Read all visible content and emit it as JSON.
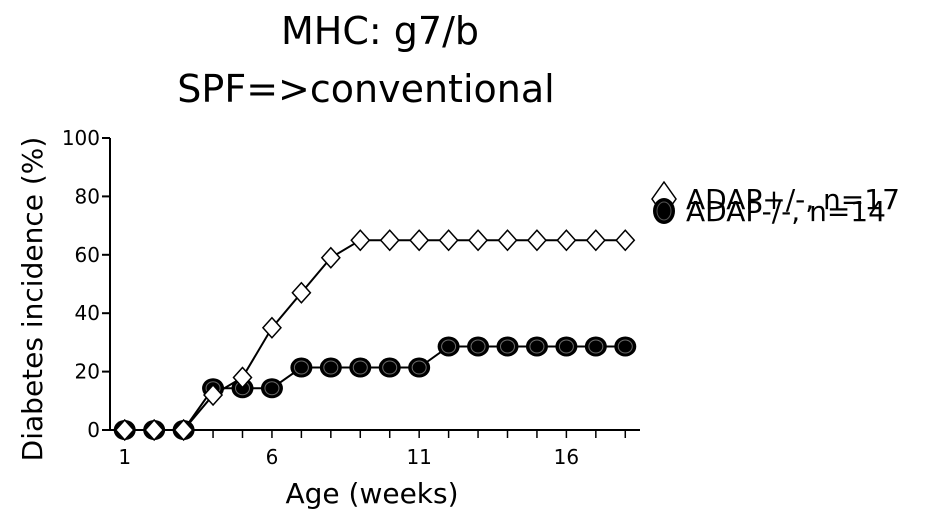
{
  "chart_data": {
    "type": "line",
    "title": "MHC: g7/b",
    "subtitle": "SPF=>conventional",
    "xlabel": "Age (weeks)",
    "ylabel": "Diabetes incidence (%)",
    "xlim": [
      0.5,
      18.5
    ],
    "ylim": [
      0,
      100
    ],
    "x_ticks": [
      1,
      6,
      11,
      16
    ],
    "y_ticks": [
      0,
      20,
      40,
      60,
      80,
      100
    ],
    "grid": false,
    "legend_position": "right",
    "series": [
      {
        "name": "ADAP+/-, n=17",
        "marker": "open-diamond",
        "x": [
          1,
          2,
          3,
          4,
          5,
          6,
          7,
          8,
          9,
          10,
          11,
          12,
          13,
          14,
          15,
          16,
          17,
          18
        ],
        "y": [
          0,
          0,
          0,
          12,
          18,
          35,
          47,
          59,
          65,
          65,
          65,
          65,
          65,
          65,
          65,
          65,
          65,
          65
        ]
      },
      {
        "name": "ADAP-/-, n=14",
        "marker": "filled-circle",
        "x": [
          1,
          2,
          3,
          4,
          5,
          6,
          7,
          8,
          9,
          10,
          11,
          12,
          13,
          14,
          15,
          16,
          17,
          18
        ],
        "y": [
          0,
          0,
          0,
          14.3,
          14.3,
          14.3,
          21.4,
          21.4,
          21.4,
          21.4,
          21.4,
          28.6,
          28.6,
          28.6,
          28.6,
          28.6,
          28.6,
          28.6
        ]
      }
    ]
  }
}
